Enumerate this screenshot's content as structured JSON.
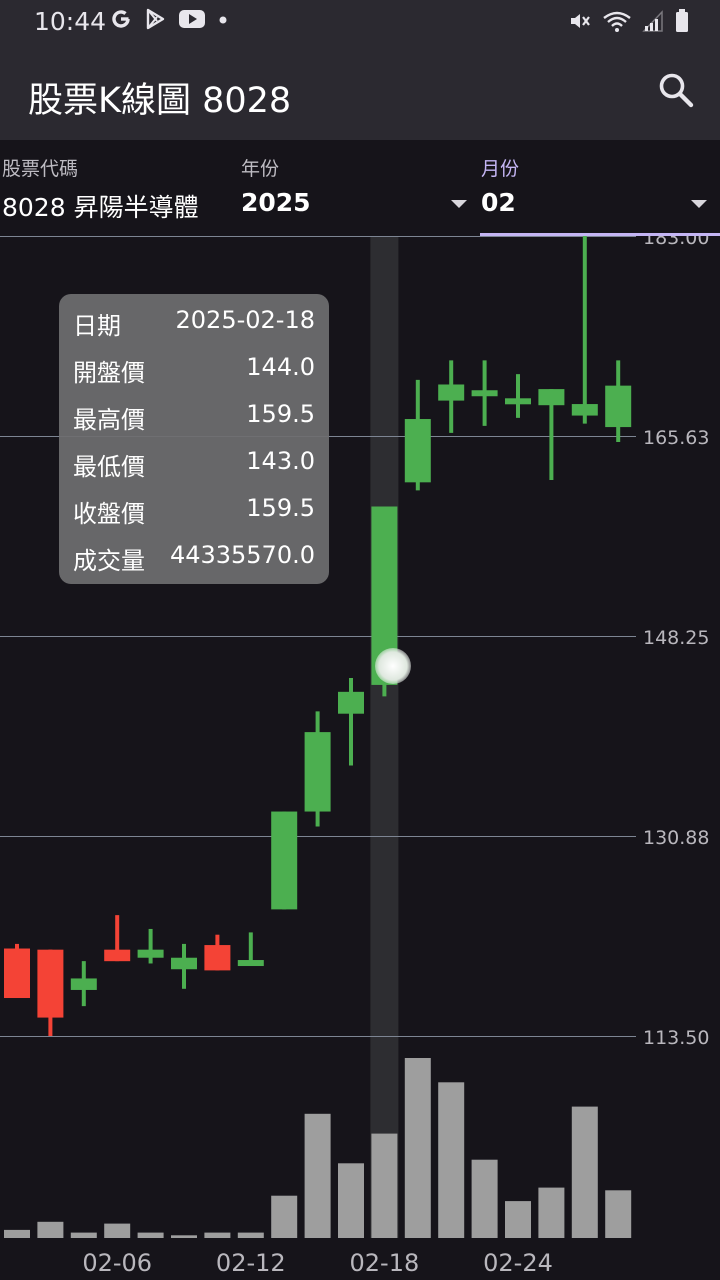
{
  "status_bar": {
    "time": "10:44",
    "left_icons": [
      "google-icon",
      "play-store-icon",
      "youtube-icon",
      "dot-icon"
    ],
    "right_icons": [
      "mute-icon",
      "wifi-icon",
      "signal-icon",
      "battery-icon"
    ]
  },
  "app_bar": {
    "title": "股票K線圖 8028",
    "search_icon": "search-icon"
  },
  "form": {
    "stock": {
      "label": "股票代碼",
      "value": "8028 昇陽半導體"
    },
    "year": {
      "label": "年份",
      "value": "2025"
    },
    "month": {
      "label": "月份",
      "value": "02"
    }
  },
  "tooltip": {
    "rows": [
      {
        "label": "日期",
        "value": "2025-02-18"
      },
      {
        "label": "開盤價",
        "value": "144.0"
      },
      {
        "label": "最高價",
        "value": "159.5"
      },
      {
        "label": "最低價",
        "value": "143.0"
      },
      {
        "label": "收盤價",
        "value": "159.5"
      },
      {
        "label": "成交量",
        "value": "44335570.0"
      }
    ]
  },
  "colors": {
    "up": "#4caf50",
    "down": "#f44336",
    "volume": "#9e9e9e",
    "highlight": "#2d2d31",
    "grid": "#7d8593",
    "axis_text": "#b9b7bd"
  },
  "chart_data": {
    "type": "candlestick",
    "ylim": [
      113.5,
      183.0
    ],
    "y_ticks": [
      "183.00",
      "165.63",
      "148.25",
      "130.88",
      "113.50"
    ],
    "x_ticks": [
      {
        "index": 3,
        "label": "02-06"
      },
      {
        "index": 7,
        "label": "02-12"
      },
      {
        "index": 11,
        "label": "02-18"
      },
      {
        "index": 15,
        "label": "02-24"
      }
    ],
    "highlight_index": 11,
    "candles": [
      {
        "open": 121.1,
        "high": 121.5,
        "low": 117.2,
        "close": 116.8
      },
      {
        "open": 121.0,
        "high": 121.0,
        "low": 113.5,
        "close": 115.1
      },
      {
        "open": 117.5,
        "high": 120.0,
        "low": 116.1,
        "close": 118.5
      },
      {
        "open": 121.0,
        "high": 124.0,
        "low": 120.0,
        "close": 120.0
      },
      {
        "open": 120.3,
        "high": 122.8,
        "low": 119.8,
        "close": 121.0
      },
      {
        "open": 119.3,
        "high": 121.5,
        "low": 117.6,
        "close": 120.3
      },
      {
        "open": 121.4,
        "high": 122.3,
        "low": 119.2,
        "close": 119.2
      },
      {
        "open": 120.1,
        "high": 122.5,
        "low": 119.6,
        "close": 120.1
      },
      {
        "open": 124.5,
        "high": 133.0,
        "low": 124.5,
        "close": 133.0
      },
      {
        "open": 133.0,
        "high": 141.7,
        "low": 131.7,
        "close": 139.9
      },
      {
        "open": 141.5,
        "high": 144.6,
        "low": 137.0,
        "close": 143.4
      },
      {
        "open": 144.0,
        "high": 159.5,
        "low": 143.0,
        "close": 159.5
      },
      {
        "open": 161.6,
        "high": 170.5,
        "low": 160.9,
        "close": 167.1
      },
      {
        "open": 168.7,
        "high": 172.2,
        "low": 165.9,
        "close": 170.1
      },
      {
        "open": 169.6,
        "high": 172.2,
        "low": 166.5,
        "close": 169.6
      },
      {
        "open": 168.9,
        "high": 171.0,
        "low": 167.2,
        "close": 168.9
      },
      {
        "open": 168.3,
        "high": 169.7,
        "low": 161.8,
        "close": 169.7
      },
      {
        "open": 167.4,
        "high": 183.0,
        "low": 166.7,
        "close": 168.4
      },
      {
        "open": 166.4,
        "high": 172.2,
        "low": 165.1,
        "close": 170.0
      }
    ],
    "volume": [
      0.045,
      0.09,
      0.03,
      0.08,
      0.03,
      0.015,
      0.03,
      0.03,
      0.235,
      0.69,
      0.415,
      0.58,
      1.0,
      0.865,
      0.435,
      0.205,
      0.28,
      0.73,
      0.265
    ]
  }
}
